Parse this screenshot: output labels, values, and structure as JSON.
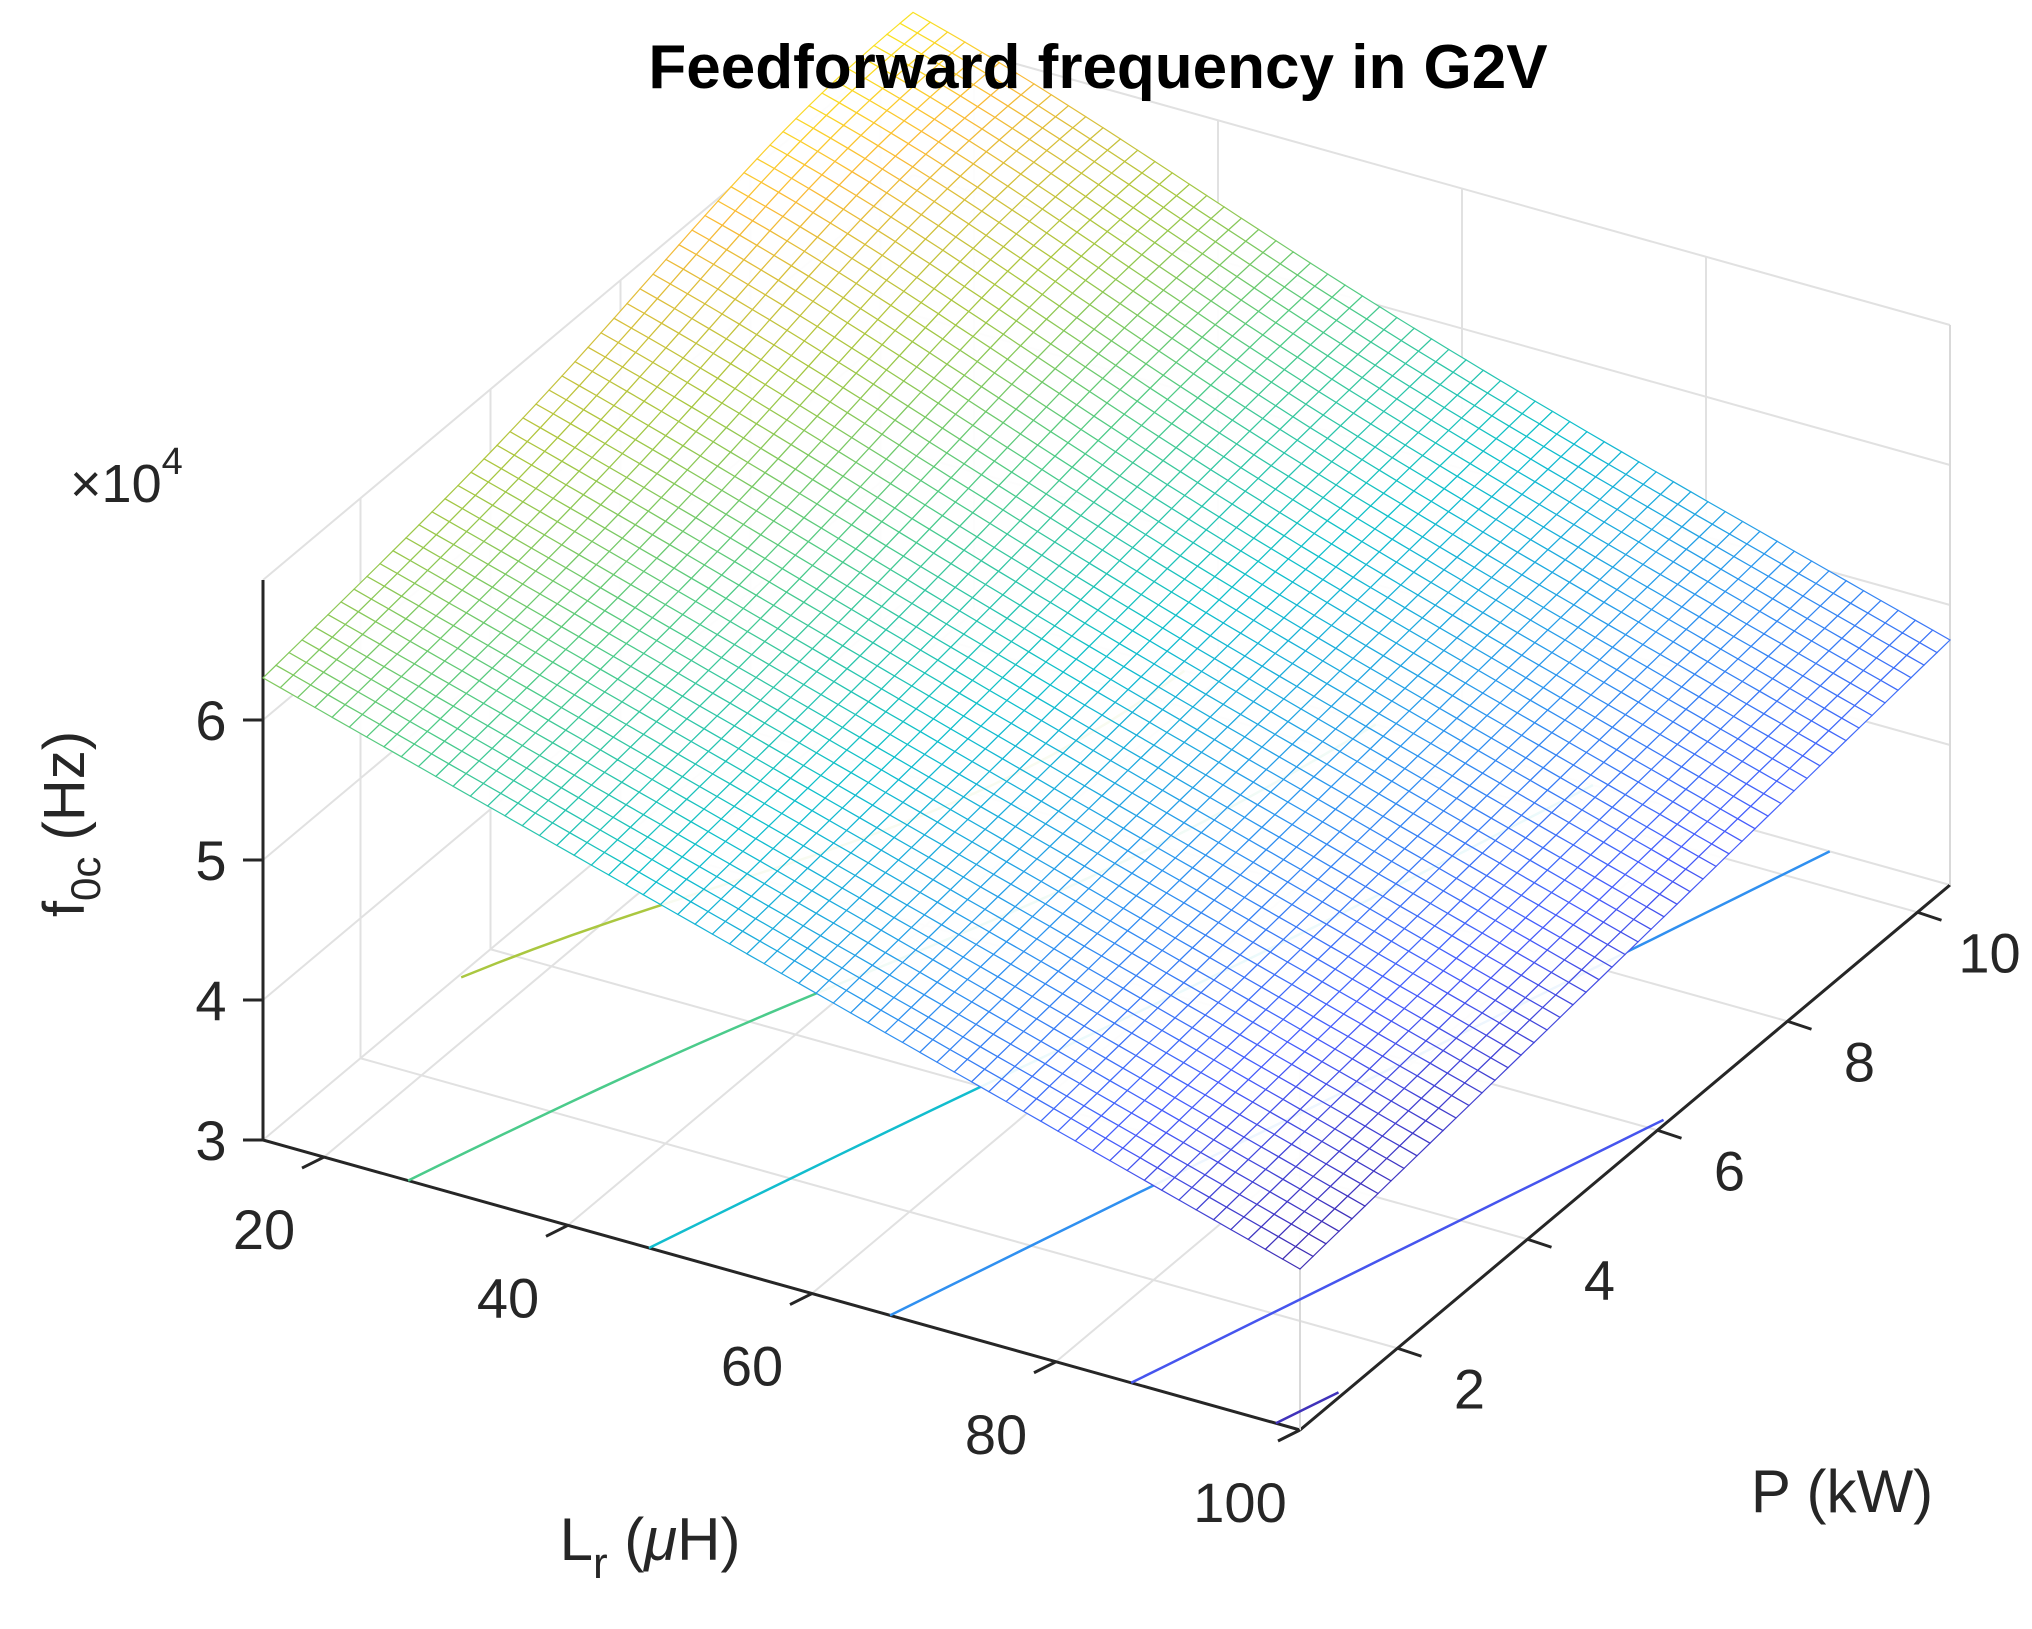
{
  "chart_data": {
    "type": "surface",
    "title": "Feedforward frequency in G2V",
    "xlabel": {
      "main": "L",
      "sub": "r",
      "rest": " (",
      "greek": "μ",
      "tail": "H)"
    },
    "ylabel": "P (kW)",
    "zlabel": {
      "main": "f",
      "sub": "0c",
      "rest": "  (Hz)"
    },
    "z_multiplier": {
      "prefix": "×10",
      "exponent": "4"
    },
    "x_range": [
      15,
      100
    ],
    "y_range": [
      0.5,
      10.5
    ],
    "z_range": [
      30000,
      70000
    ],
    "x_ticks": [
      "20",
      "40",
      "60",
      "80",
      "100"
    ],
    "x_tick_values": [
      20,
      40,
      60,
      80,
      100
    ],
    "y_ticks": [
      "2",
      "4",
      "6",
      "8",
      "10"
    ],
    "y_tick_values": [
      2,
      4,
      6,
      8,
      10
    ],
    "z_ticks": [
      "3",
      "4",
      "5",
      "6"
    ],
    "z_tick_values": [
      30000,
      40000,
      50000,
      60000
    ],
    "corner_values_hz": {
      "Lr20_P0.5": 63000,
      "Lr20_P10.5": 69000,
      "Lr100_P0.5": 41500,
      "Lr100_P10.5": 47500
    },
    "peak_hz": 72500,
    "grid": true,
    "colormap": "parula",
    "contour_levels_hz": [
      65000,
      60000,
      55000,
      50000,
      45000,
      42000
    ]
  }
}
